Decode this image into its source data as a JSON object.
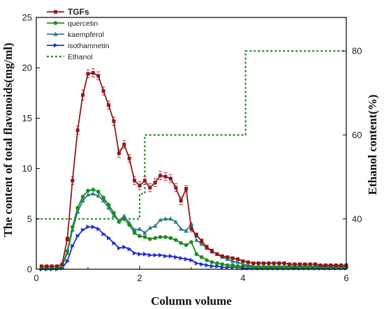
{
  "chart_data": {
    "type": "line",
    "xlabel": "Column volume",
    "ylabel": "The content of total flavonoids(mg/ml)",
    "y2label": "Ethanol content(%)",
    "xlim": [
      0,
      6
    ],
    "ylim": [
      0,
      25
    ],
    "y2lim": [
      28,
      88
    ],
    "xticks": [
      "0",
      "2",
      "4",
      "6"
    ],
    "yticks": [
      "0",
      "5",
      "10",
      "15",
      "20",
      "25"
    ],
    "y2ticks": [
      "40",
      "60",
      "80"
    ],
    "grid": false,
    "legend_position": "top-left",
    "colors": {
      "tgfs": "#8b1a1a",
      "quercetin": "#1e8c1e",
      "kaempferol": "#2e7d8c",
      "isothamnetin": "#1f2fd6",
      "ethanol": "#2a8a2a",
      "error_bar": "#ff80d0"
    },
    "series": [
      {
        "name": "TGFs",
        "key": "tgfs",
        "marker": "square",
        "x": [
          0.1,
          0.2,
          0.3,
          0.4,
          0.5,
          0.6,
          0.7,
          0.8,
          0.9,
          1.0,
          1.1,
          1.2,
          1.3,
          1.4,
          1.5,
          1.6,
          1.7,
          1.8,
          1.9,
          2.0,
          2.1,
          2.2,
          2.3,
          2.4,
          2.5,
          2.6,
          2.7,
          2.8,
          2.9,
          3.0,
          3.1,
          3.2,
          3.3,
          3.4,
          3.5,
          3.6,
          3.7,
          3.8,
          3.9,
          4.0,
          4.1,
          4.2,
          4.3,
          4.4,
          4.5,
          4.6,
          4.7,
          4.8,
          4.9,
          5.0,
          5.1,
          5.2,
          5.3,
          5.4,
          5.5,
          5.6,
          5.7,
          5.8,
          5.9,
          6.0
        ],
        "values": [
          0.3,
          0.3,
          0.3,
          0.3,
          0.5,
          3.0,
          8.8,
          13.8,
          17.3,
          19.4,
          19.5,
          19.2,
          17.7,
          16.3,
          14.7,
          11.5,
          12.4,
          11.0,
          8.8,
          8.3,
          8.8,
          8.1,
          8.6,
          9.3,
          9.2,
          9.0,
          8.1,
          6.8,
          8.0,
          4.0,
          3.4,
          2.8,
          2.2,
          1.8,
          1.5,
          1.3,
          1.2,
          1.1,
          1.0,
          0.8,
          0.7,
          0.6,
          0.6,
          0.6,
          0.6,
          0.6,
          0.6,
          0.6,
          0.5,
          0.5,
          0.5,
          0.5,
          0.5,
          0.5,
          0.4,
          0.4,
          0.4,
          0.4,
          0.4,
          0.4
        ]
      },
      {
        "name": "quercetin",
        "key": "quercetin",
        "marker": "circle",
        "x": [
          0.1,
          0.2,
          0.3,
          0.4,
          0.5,
          0.6,
          0.7,
          0.8,
          0.9,
          1.0,
          1.1,
          1.2,
          1.3,
          1.4,
          1.5,
          1.6,
          1.7,
          1.8,
          1.9,
          2.0,
          2.1,
          2.2,
          2.3,
          2.4,
          2.5,
          2.6,
          2.7,
          2.8,
          2.9,
          3.0,
          3.1,
          3.2,
          3.3,
          3.4,
          3.5,
          3.6,
          3.7,
          3.8,
          3.9,
          4.0,
          4.1,
          4.2,
          4.3,
          4.4,
          4.5,
          4.6,
          4.7,
          4.8,
          4.9,
          5.0,
          5.1,
          5.2,
          5.3,
          5.4,
          5.5,
          5.6,
          5.7,
          5.8,
          5.9,
          6.0
        ],
        "values": [
          0.1,
          0.1,
          0.1,
          0.1,
          0.3,
          1.8,
          4.2,
          6.1,
          7.2,
          7.8,
          7.9,
          7.7,
          7.1,
          6.4,
          5.6,
          4.7,
          5.0,
          4.4,
          3.6,
          3.3,
          3.2,
          3.0,
          3.1,
          3.2,
          3.2,
          3.1,
          2.9,
          2.6,
          2.4,
          2.7,
          1.5,
          1.2,
          0.9,
          0.7,
          0.6,
          0.5,
          0.4,
          0.4,
          0.3,
          0.3,
          0.3,
          0.2,
          0.2,
          0.2,
          0.2,
          0.2,
          0.2,
          0.2,
          0.2,
          0.2,
          0.2,
          0.2,
          0.2,
          0.2,
          0.2,
          0.2,
          0.2,
          0.2,
          0.2,
          0.2
        ]
      },
      {
        "name": "kaempferol",
        "key": "kaempferol",
        "marker": "triangle",
        "x": [
          0.1,
          0.2,
          0.3,
          0.4,
          0.5,
          0.6,
          0.7,
          0.8,
          0.9,
          1.0,
          1.1,
          1.2,
          1.3,
          1.4,
          1.5,
          1.6,
          1.7,
          1.8,
          1.9,
          2.0,
          2.1,
          2.2,
          2.3,
          2.4,
          2.5,
          2.6,
          2.7,
          2.8,
          2.9,
          3.0,
          3.1,
          3.2,
          3.3,
          3.4,
          3.5,
          3.6,
          3.7,
          3.8,
          3.9,
          4.0,
          4.1,
          4.2,
          4.3,
          4.4,
          4.5,
          4.6,
          4.7,
          4.8,
          4.9,
          5.0,
          5.1,
          5.2,
          5.3,
          5.4,
          5.5,
          5.6,
          5.7,
          5.8,
          5.9,
          6.0
        ],
        "values": [
          0.1,
          0.1,
          0.1,
          0.1,
          0.3,
          1.6,
          3.9,
          5.7,
          6.8,
          7.4,
          7.5,
          7.3,
          6.8,
          6.1,
          5.3,
          4.8,
          5.3,
          4.6,
          3.9,
          4.0,
          3.6,
          4.1,
          4.3,
          4.9,
          5.0,
          5.0,
          4.7,
          4.0,
          3.8,
          4.5,
          2.9,
          2.5,
          2.1,
          1.8,
          1.5,
          1.2,
          1.0,
          0.8,
          0.7,
          0.5,
          0.4,
          0.3,
          0.3,
          0.3,
          0.3,
          0.3,
          0.3,
          0.3,
          0.3,
          0.3,
          0.3,
          0.3,
          0.3,
          0.3,
          0.3,
          0.3,
          0.3,
          0.3,
          0.3,
          0.3
        ]
      },
      {
        "name": "isothamnetin",
        "key": "isothamnetin",
        "marker": "triangle-right",
        "x": [
          0.1,
          0.2,
          0.3,
          0.4,
          0.5,
          0.6,
          0.7,
          0.8,
          0.9,
          1.0,
          1.1,
          1.2,
          1.3,
          1.4,
          1.5,
          1.6,
          1.7,
          1.8,
          1.9,
          2.0,
          2.1,
          2.2,
          2.3,
          2.4,
          2.5,
          2.6,
          2.7,
          2.8,
          2.9,
          3.0,
          3.1,
          3.2,
          3.3,
          3.4,
          3.5,
          3.6,
          3.7,
          3.8,
          3.9,
          4.0,
          4.1,
          4.2,
          4.3,
          4.4,
          4.5,
          4.6,
          4.7,
          4.8,
          4.9,
          5.0,
          5.1,
          5.2,
          5.3,
          5.4,
          5.5,
          5.6,
          5.7,
          5.8,
          5.9,
          6.0
        ],
        "values": [
          0.0,
          0.0,
          0.0,
          0.0,
          0.1,
          0.8,
          2.3,
          3.3,
          3.9,
          4.2,
          4.2,
          4.0,
          3.5,
          3.1,
          2.6,
          2.1,
          2.2,
          2.0,
          1.6,
          1.5,
          1.5,
          1.4,
          1.4,
          1.4,
          1.3,
          1.3,
          1.2,
          1.1,
          1.0,
          0.9,
          0.6,
          0.5,
          0.4,
          0.3,
          0.3,
          0.2,
          0.2,
          0.2,
          0.2,
          0.1,
          0.1,
          0.1,
          0.1,
          0.1,
          0.1,
          0.1,
          0.1,
          0.1,
          0.1,
          0.1,
          0.1,
          0.1,
          0.1,
          0.1,
          0.1,
          0.1,
          0.1,
          0.1,
          0.1,
          0.1
        ]
      },
      {
        "name": "Ethanol",
        "key": "ethanol",
        "axis": "right",
        "style": "dotted-step",
        "x": [
          0,
          2.0,
          2.0,
          2.1,
          2.1,
          4.0,
          4.0,
          4.05,
          4.05,
          6.0
        ],
        "values": [
          40,
          40,
          46,
          46,
          60,
          60,
          60,
          60,
          80,
          80
        ]
      }
    ],
    "error_bars": {
      "tgfs": [
        0,
        0,
        0,
        0,
        0,
        0.2,
        0.4,
        0.4,
        0.5,
        0.4,
        0.4,
        0.4,
        0.4,
        0.4,
        0.4,
        0.4,
        0.4,
        0.4,
        0.4,
        0.4,
        0.4,
        0.4,
        0.4,
        0.4,
        0.4,
        0.4,
        0.4,
        0.4,
        0.3,
        0.3,
        0.2,
        0.2,
        0.2,
        0.2,
        0.1,
        0.1,
        0.1,
        0.1,
        0.1,
        0.1,
        0.1,
        0.1,
        0.1,
        0.1,
        0.1,
        0.1,
        0.1,
        0.1,
        0.1,
        0.1,
        0.1,
        0.1,
        0.1,
        0.1,
        0.1,
        0.1,
        0.1,
        0.1,
        0.1,
        0.1
      ]
    }
  }
}
